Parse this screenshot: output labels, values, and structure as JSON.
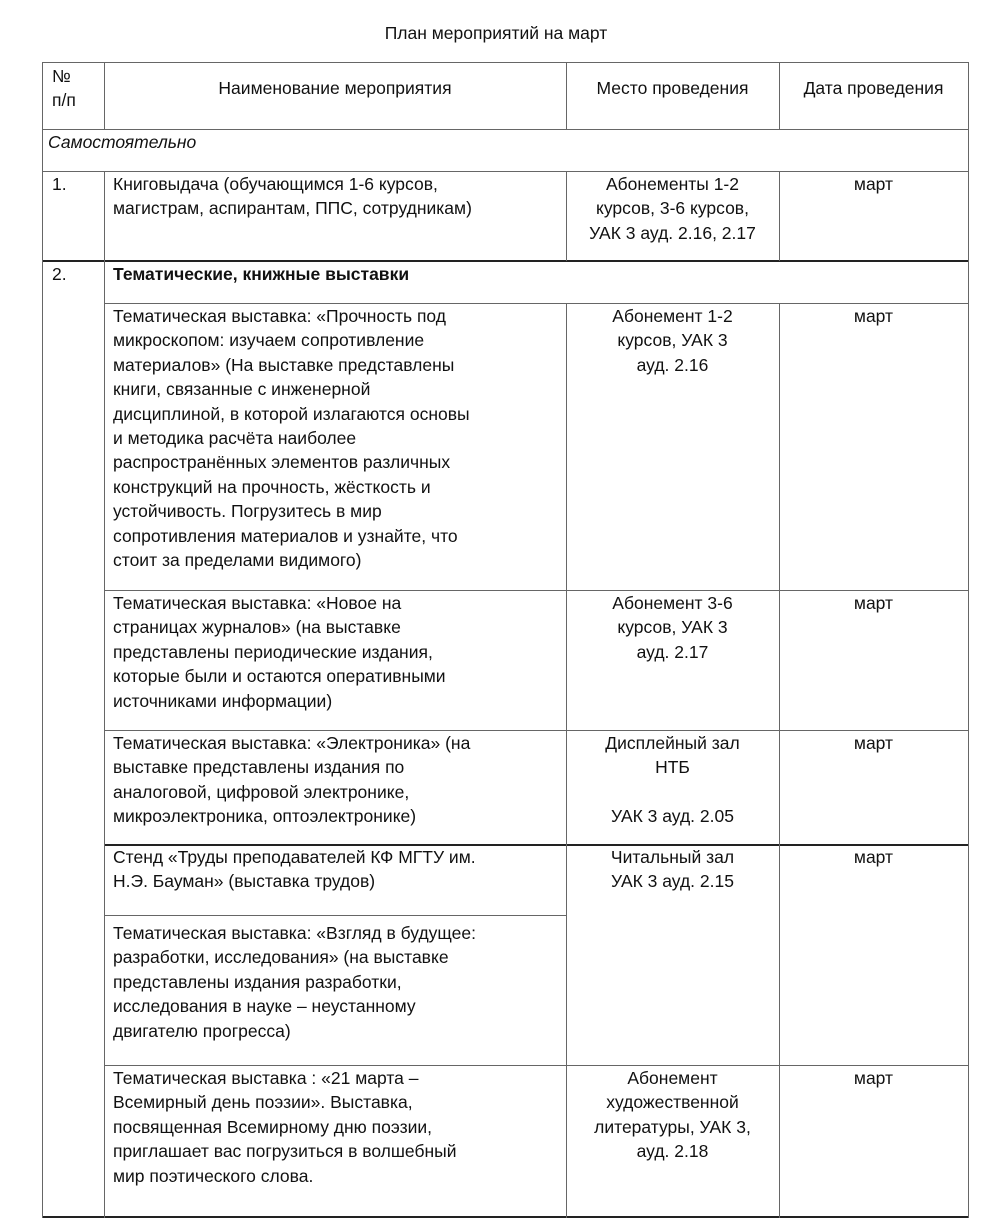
{
  "title": "План мероприятий на март",
  "header": {
    "num": "№\nп/п",
    "name": "Наименование мероприятия",
    "place": "Место проведения",
    "date": "Дата проведения"
  },
  "section": "Самостоятельно",
  "row1": {
    "num": "1.",
    "name": "Книговыдача (обучающимся 1-6 курсов,\nмагистрам, аспирантам, ППС, сотрудникам)",
    "place": "Абонементы 1-2\nкурсов, 3-6 курсов,\nУАК 3 ауд. 2.16, 2.17",
    "date": "март"
  },
  "row2": {
    "num": "2.",
    "heading": "Тематические, книжные выставки",
    "items": [
      {
        "name": "Тематическая выставка: «Прочность под\nмикроскопом: изучаем сопротивление\nматериалов» (На выставке представлены\nкниги, связанные с инженерной\nдисциплиной, в которой излагаются основы\nи методика расчёта наиболее\nраспространённых элементов различных\nконструкций на прочность, жёсткость и\nустойчивость. Погрузитесь в мир\nсопротивления материалов и узнайте, что\nстоит за пределами видимого)",
        "place": "Абонемент 1-2\nкурсов, УАК 3\nауд. 2.16",
        "date": "март"
      },
      {
        "name": "Тематическая выставка: «Новое на\nстраницах журналов» (на выставке\nпредставлены периодические издания,\nкоторые были и остаются оперативными\nисточниками информации)",
        "place": "Абонемент 3-6\nкурсов, УАК 3\nауд. 2.17",
        "date": "март"
      },
      {
        "name": "Тематическая выставка: «Электроника» (на\nвыставке представлены издания по\nаналоговой, цифровой электронике,\nмикроэлектроника, оптоэлектронике)",
        "place": "Дисплейный зал\nНТБ\n\nУАК 3 ауд. 2.05",
        "date": "март"
      },
      {
        "name": "Стенд «Труды преподавателей КФ МГТУ им.\nН.Э. Бауман» (выставка трудов)",
        "place": "Читальный зал\nУАК 3 ауд. 2.15",
        "date": "март"
      },
      {
        "name": "Тематическая выставка: «Взгляд в будущее:\nразработки, исследования» (на выставке\nпредставлены издания разработки,\nисследования в науке – неустанному\nдвигателю  прогресса)"
      },
      {
        "name": "Тематическая выставка : «21 марта –\nВсемирный день поэзии». Выставка,\nпосвященная Всемирному дню поэзии,\nприглашает вас погрузиться в волшебный\nмир поэтического слова.",
        "place": "Абонемент\nхудожественной\nлитературы, УАК 3,\nауд. 2.18",
        "date": "март"
      }
    ]
  }
}
